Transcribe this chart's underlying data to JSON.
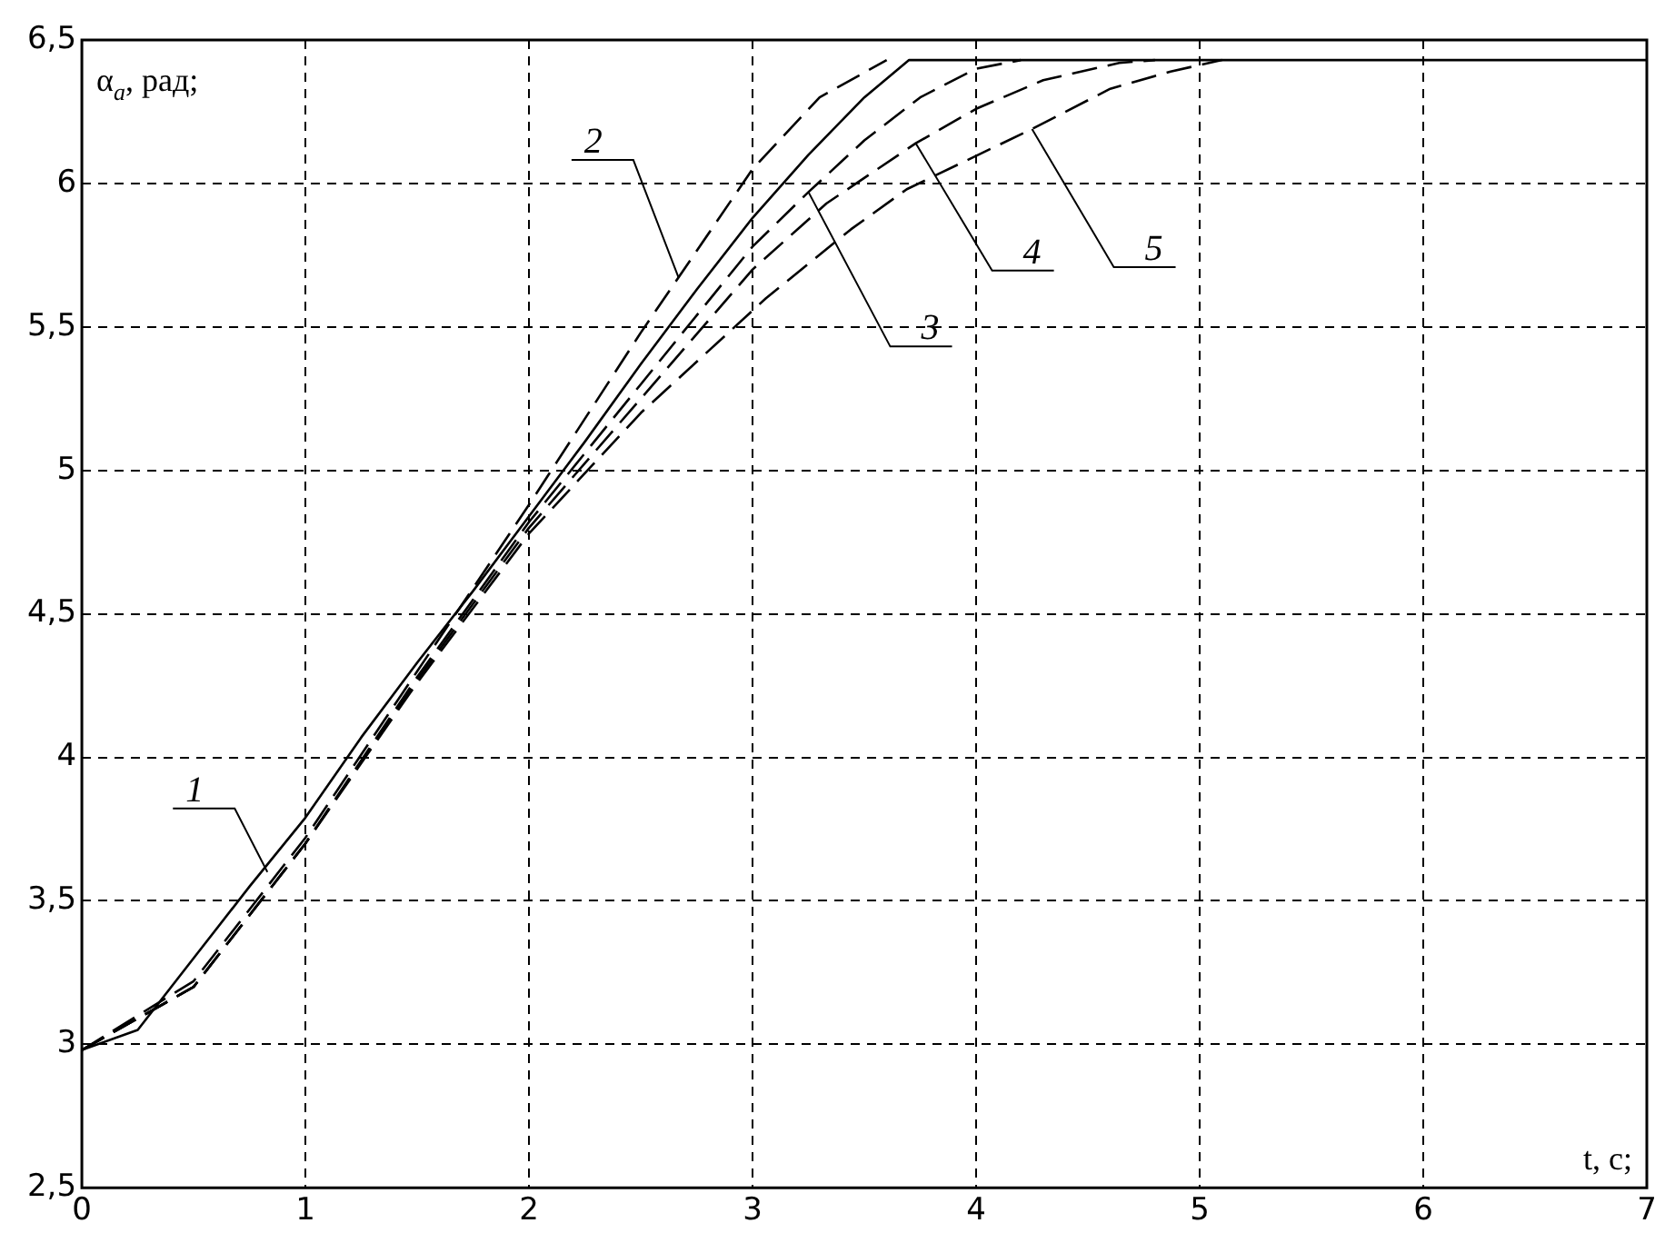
{
  "chart_data": {
    "type": "line",
    "xlabel": "t, с;",
    "ylabel": "α$_{a}$, рад;",
    "xlim": [
      0,
      7
    ],
    "xticks": [
      0,
      1,
      2,
      3,
      4,
      5,
      6,
      7
    ],
    "ylim": [
      2.5,
      6.5
    ],
    "yticks": [
      {
        "value": 2.5,
        "label": "2,5"
      },
      3,
      {
        "value": 3.5,
        "label": "3,5"
      },
      4,
      {
        "value": 4.5,
        "label": "4,5"
      },
      5,
      {
        "value": 5.5,
        "label": "5,5"
      },
      6,
      {
        "value": 6.5,
        "label": "6,5"
      }
    ],
    "grid": true,
    "legend": false,
    "series": [
      {
        "color": "#000000",
        "line_style": "solid",
        "x": [
          0,
          0.25,
          0.5,
          0.75,
          1,
          1.25,
          1.5,
          1.75,
          2,
          2.25,
          2.5,
          2.75,
          3,
          3.25,
          3.5,
          3.7,
          7
        ],
        "values": [
          2.98,
          3.05,
          3.3,
          3.55,
          3.79,
          4.07,
          4.33,
          4.58,
          4.84,
          5.1,
          5.37,
          5.63,
          5.88,
          6.1,
          6.3,
          6.43,
          6.43
        ]
      },
      {
        "color": "#000000",
        "line_style": "dashed",
        "x": [
          0,
          0.5,
          1,
          1.5,
          2,
          2.5,
          3,
          3.3,
          3.6
        ],
        "values": [
          2.98,
          3.22,
          3.72,
          4.3,
          4.88,
          5.48,
          6.05,
          6.3,
          6.43
        ]
      },
      {
        "color": "#000000",
        "line_style": "dashed",
        "x": [
          0,
          0.5,
          1,
          1.5,
          2,
          2.5,
          3,
          3.25,
          3.5,
          3.75,
          4,
          4.2
        ],
        "values": [
          2.98,
          3.2,
          3.7,
          4.28,
          4.82,
          5.3,
          5.78,
          5.97,
          6.15,
          6.3,
          6.4,
          6.43
        ]
      },
      {
        "color": "#000000",
        "line_style": "dashed",
        "x": [
          0,
          0.5,
          1,
          1.5,
          2,
          2.5,
          3,
          3.33,
          3.73,
          4,
          4.3,
          4.64,
          4.8
        ],
        "values": [
          2.98,
          3.2,
          3.7,
          4.27,
          4.8,
          5.25,
          5.7,
          5.93,
          6.14,
          6.26,
          6.36,
          6.42,
          6.43
        ]
      },
      {
        "color": "#000000",
        "line_style": "dashed",
        "x": [
          0,
          0.5,
          1,
          1.5,
          2,
          2.5,
          3.06,
          3.44,
          3.69,
          4.25,
          4.6,
          4.87,
          5.1
        ],
        "values": [
          2.98,
          3.2,
          3.7,
          4.26,
          4.78,
          5.2,
          5.6,
          5.84,
          5.98,
          6.19,
          6.33,
          6.39,
          6.43
        ]
      }
    ],
    "annotations": [
      {
        "text": "1",
        "x": 0.83,
        "y": 3.6
      },
      {
        "text": "2",
        "x": 2.67,
        "y": 5.67
      },
      {
        "text": "3",
        "x": 3.25,
        "y": 5.97
      },
      {
        "text": "4",
        "x": 3.73,
        "y": 6.14
      },
      {
        "text": "5",
        "x": 4.25,
        "y": 6.19
      }
    ]
  }
}
